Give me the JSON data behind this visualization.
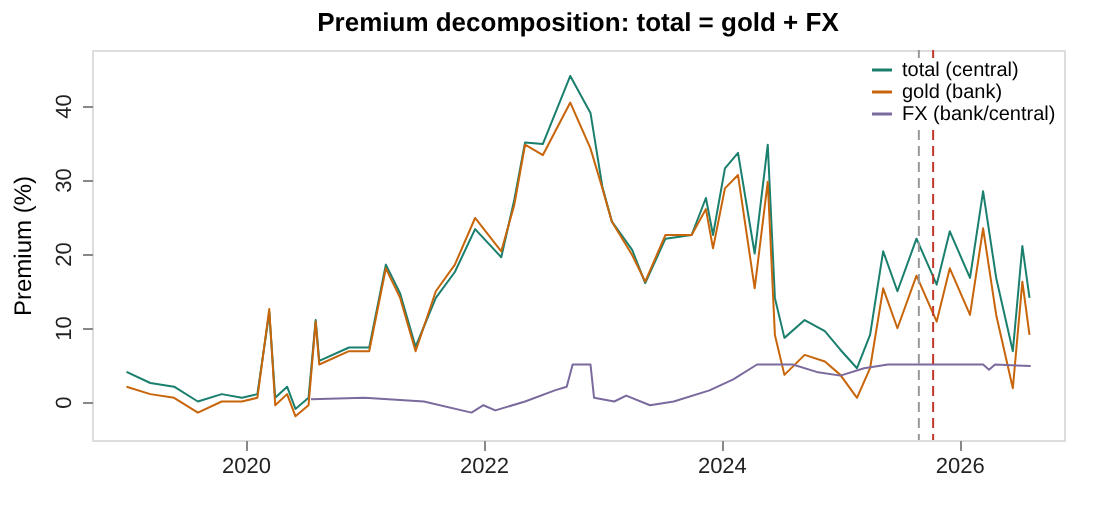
{
  "chart_data": {
    "type": "line",
    "title": "Premium decomposition: total = gold + FX",
    "ylabel": "Premium (%)",
    "xlim": [
      2018.71,
      2026.88
    ],
    "xticks": [
      2020,
      2022,
      2024,
      2026
    ],
    "ylim": [
      -5.2,
      47.5
    ],
    "yticks": [
      0,
      10,
      20,
      30,
      40
    ],
    "grid": false,
    "legend": "top right",
    "line_style": "solid",
    "series": [
      {
        "name": "total (central)",
        "color": "#1b7f6e",
        "x": [
          2019.0,
          2019.2,
          2019.4,
          2019.6,
          2019.8,
          2019.97,
          2020.1,
          2020.2,
          2020.25,
          2020.35,
          2020.42,
          2020.53,
          2020.59,
          2020.62,
          2020.87,
          2021.04,
          2021.18,
          2021.3,
          2021.43,
          2021.6,
          2021.76,
          2021.93,
          2022.15,
          2022.26,
          2022.35,
          2022.5,
          2022.73,
          2022.9,
          2023.0,
          2023.08,
          2023.25,
          2023.36,
          2023.53,
          2023.75,
          2023.87,
          2023.93,
          2024.03,
          2024.14,
          2024.28,
          2024.39,
          2024.45,
          2024.53,
          2024.7,
          2024.87,
          2025.0,
          2025.14,
          2025.25,
          2025.36,
          2025.48,
          2025.64,
          2025.81,
          2025.92,
          2026.09,
          2026.2,
          2026.31,
          2026.45,
          2026.53,
          2026.59
        ],
        "values": [
          4,
          2.5,
          2,
          0,
          1,
          0.5,
          1,
          12,
          0.5,
          2,
          -1,
          0.5,
          11,
          5.5,
          7.3,
          7.3,
          18.5,
          14.6,
          7.4,
          14,
          17.5,
          23.3,
          19.5,
          27.3,
          35,
          34.8,
          44,
          39,
          29,
          24.3,
          20.5,
          16,
          22,
          22.5,
          27.5,
          22.5,
          31.5,
          33.6,
          20,
          34.7,
          14,
          8.6,
          11,
          9.5,
          7,
          4.5,
          9,
          20.3,
          14.9,
          22,
          15.8,
          23,
          16.7,
          28.4,
          16.7,
          6.8,
          21,
          14
        ]
      },
      {
        "name": "gold (bank)",
        "color": "#c8650a",
        "x": [
          2019.0,
          2019.2,
          2019.4,
          2019.6,
          2019.8,
          2019.97,
          2020.1,
          2020.2,
          2020.25,
          2020.35,
          2020.42,
          2020.53,
          2020.59,
          2020.62,
          2020.87,
          2021.04,
          2021.18,
          2021.3,
          2021.43,
          2021.6,
          2021.76,
          2021.93,
          2022.15,
          2022.26,
          2022.35,
          2022.5,
          2022.73,
          2022.9,
          2023.0,
          2023.08,
          2023.25,
          2023.36,
          2023.53,
          2023.75,
          2023.87,
          2023.93,
          2024.03,
          2024.14,
          2024.28,
          2024.39,
          2024.45,
          2024.53,
          2024.7,
          2024.87,
          2025.0,
          2025.14,
          2025.25,
          2025.36,
          2025.48,
          2025.64,
          2025.81,
          2025.92,
          2026.09,
          2026.2,
          2026.31,
          2026.45,
          2026.53,
          2026.59
        ],
        "values": [
          2,
          1,
          0.5,
          -1.5,
          0,
          0,
          0.5,
          12.5,
          -0.5,
          1,
          -2,
          -0.5,
          10.8,
          5,
          6.8,
          6.8,
          18,
          14,
          6.8,
          14.9,
          18.5,
          24.8,
          20.3,
          26.6,
          34.7,
          33.3,
          40.4,
          34.2,
          28.8,
          24.3,
          19.8,
          16.2,
          22.5,
          22.5,
          26,
          20.7,
          28.8,
          30.6,
          15.3,
          29.7,
          9,
          3.6,
          6.3,
          5.4,
          3.6,
          0.5,
          4.5,
          15.3,
          9.9,
          17,
          10.8,
          18,
          11.7,
          23.4,
          11.7,
          1.8,
          16.2,
          9
        ]
      },
      {
        "name": "FX (bank/central)",
        "color": "#7b6a9e",
        "x": [
          2020.55,
          2021.0,
          2021.5,
          2021.9,
          2022.0,
          2022.1,
          2022.35,
          2022.6,
          2022.7,
          2022.75,
          2022.9,
          2022.93,
          2023.1,
          2023.2,
          2023.4,
          2023.6,
          2023.9,
          2024.1,
          2024.3,
          2024.6,
          2024.8,
          2025.0,
          2025.2,
          2025.4,
          2026.2,
          2026.25,
          2026.3,
          2026.6
        ],
        "values": [
          0.3,
          0.5,
          0,
          -1.5,
          -0.5,
          -1.2,
          0,
          1.5,
          2,
          5,
          5,
          0.5,
          0,
          0.8,
          -0.5,
          0,
          1.5,
          3,
          5,
          5,
          4,
          3.5,
          4.5,
          5,
          5,
          4.3,
          5,
          4.8
        ]
      }
    ],
    "ref_lines": [
      {
        "axis": "x",
        "value": 2025.66,
        "label": null,
        "color": "#999999",
        "line_style": "dashed"
      },
      {
        "axis": "x",
        "value": 2025.78,
        "label": null,
        "color": "#c0392b",
        "line_style": "dashed"
      }
    ]
  }
}
